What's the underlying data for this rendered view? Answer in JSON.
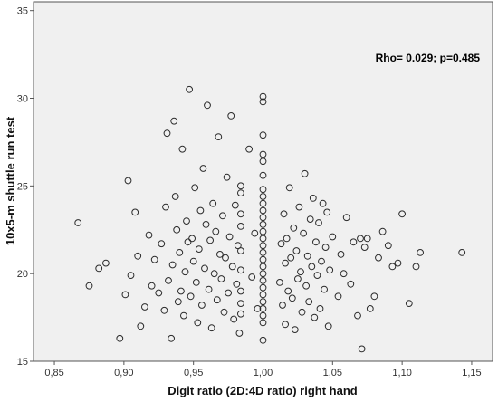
{
  "chart_data": {
    "type": "scatter",
    "title": "",
    "xlabel": "Digit ratio (2D:4D ratio) right hand",
    "ylabel": "10x5-m shuttle run test",
    "annotation": "Rho= 0.029; p=0.485",
    "xlim": [
      0.835,
      1.165
    ],
    "ylim": [
      15,
      35.5
    ],
    "x_ticks": [
      0.85,
      0.9,
      0.95,
      1.0,
      1.05,
      1.1,
      1.15
    ],
    "x_tick_labels": [
      "0,85",
      "0,90",
      "0,95",
      "1,00",
      "1,05",
      "1,10",
      "1,15"
    ],
    "y_ticks": [
      15,
      20,
      25,
      30,
      35
    ],
    "y_tick_labels": [
      "15",
      "20",
      "25",
      "30",
      "35"
    ],
    "grid": false,
    "marker": "open-circle",
    "colors": {
      "plot_background": "#f0f0f0",
      "marker_stroke": "#2b2b2b",
      "axis": "#555555"
    },
    "points": [
      {
        "x": 0.867,
        "y": 22.9
      },
      {
        "x": 0.875,
        "y": 19.3
      },
      {
        "x": 0.882,
        "y": 20.3
      },
      {
        "x": 0.887,
        "y": 20.6
      },
      {
        "x": 0.897,
        "y": 16.3
      },
      {
        "x": 0.901,
        "y": 18.8
      },
      {
        "x": 0.903,
        "y": 25.3
      },
      {
        "x": 0.905,
        "y": 19.9
      },
      {
        "x": 0.908,
        "y": 23.5
      },
      {
        "x": 0.91,
        "y": 21.0
      },
      {
        "x": 0.912,
        "y": 17.0
      },
      {
        "x": 0.915,
        "y": 18.1
      },
      {
        "x": 0.918,
        "y": 22.2
      },
      {
        "x": 0.92,
        "y": 19.3
      },
      {
        "x": 0.922,
        "y": 20.8
      },
      {
        "x": 0.925,
        "y": 18.9
      },
      {
        "x": 0.927,
        "y": 21.7
      },
      {
        "x": 0.929,
        "y": 17.9
      },
      {
        "x": 0.93,
        "y": 23.8
      },
      {
        "x": 0.931,
        "y": 28.0
      },
      {
        "x": 0.932,
        "y": 19.6
      },
      {
        "x": 0.934,
        "y": 16.3
      },
      {
        "x": 0.935,
        "y": 20.5
      },
      {
        "x": 0.936,
        "y": 28.7
      },
      {
        "x": 0.937,
        "y": 24.4
      },
      {
        "x": 0.938,
        "y": 22.5
      },
      {
        "x": 0.939,
        "y": 18.4
      },
      {
        "x": 0.94,
        "y": 21.2
      },
      {
        "x": 0.941,
        "y": 19.0
      },
      {
        "x": 0.942,
        "y": 27.1
      },
      {
        "x": 0.943,
        "y": 17.6
      },
      {
        "x": 0.944,
        "y": 20.1
      },
      {
        "x": 0.945,
        "y": 23.0
      },
      {
        "x": 0.946,
        "y": 21.8
      },
      {
        "x": 0.947,
        "y": 30.5
      },
      {
        "x": 0.948,
        "y": 18.7
      },
      {
        "x": 0.949,
        "y": 22.0
      },
      {
        "x": 0.95,
        "y": 20.7
      },
      {
        "x": 0.951,
        "y": 24.9
      },
      {
        "x": 0.952,
        "y": 19.5
      },
      {
        "x": 0.953,
        "y": 17.2
      },
      {
        "x": 0.954,
        "y": 21.4
      },
      {
        "x": 0.955,
        "y": 23.6
      },
      {
        "x": 0.956,
        "y": 18.2
      },
      {
        "x": 0.957,
        "y": 26.0
      },
      {
        "x": 0.958,
        "y": 20.3
      },
      {
        "x": 0.959,
        "y": 22.8
      },
      {
        "x": 0.96,
        "y": 29.6
      },
      {
        "x": 0.961,
        "y": 19.1
      },
      {
        "x": 0.962,
        "y": 21.9
      },
      {
        "x": 0.963,
        "y": 16.9
      },
      {
        "x": 0.964,
        "y": 24.0
      },
      {
        "x": 0.965,
        "y": 20.0
      },
      {
        "x": 0.966,
        "y": 22.4
      },
      {
        "x": 0.967,
        "y": 18.5
      },
      {
        "x": 0.968,
        "y": 27.8
      },
      {
        "x": 0.969,
        "y": 21.1
      },
      {
        "x": 0.97,
        "y": 19.7
      },
      {
        "x": 0.971,
        "y": 23.3
      },
      {
        "x": 0.972,
        "y": 17.8
      },
      {
        "x": 0.973,
        "y": 20.9
      },
      {
        "x": 0.974,
        "y": 25.5
      },
      {
        "x": 0.975,
        "y": 18.9
      },
      {
        "x": 0.976,
        "y": 22.1
      },
      {
        "x": 0.977,
        "y": 29.0
      },
      {
        "x": 0.978,
        "y": 20.4
      },
      {
        "x": 0.979,
        "y": 17.4
      },
      {
        "x": 0.98,
        "y": 23.9
      },
      {
        "x": 0.981,
        "y": 19.4
      },
      {
        "x": 0.982,
        "y": 21.6
      },
      {
        "x": 0.983,
        "y": 16.6
      },
      {
        "x": 0.984,
        "y": 24.6
      },
      {
        "x": 0.984,
        "y": 20.2
      },
      {
        "x": 0.984,
        "y": 22.7
      },
      {
        "x": 0.984,
        "y": 18.3
      },
      {
        "x": 0.984,
        "y": 25.0
      },
      {
        "x": 0.984,
        "y": 21.3
      },
      {
        "x": 0.984,
        "y": 19.0
      },
      {
        "x": 0.984,
        "y": 23.4
      },
      {
        "x": 0.984,
        "y": 17.7
      },
      {
        "x": 0.99,
        "y": 27.1
      },
      {
        "x": 0.992,
        "y": 19.8
      },
      {
        "x": 0.994,
        "y": 22.3
      },
      {
        "x": 0.996,
        "y": 18.0
      },
      {
        "x": 1.0,
        "y": 17.2
      },
      {
        "x": 1.0,
        "y": 17.6
      },
      {
        "x": 1.0,
        "y": 18.0
      },
      {
        "x": 1.0,
        "y": 18.4
      },
      {
        "x": 1.0,
        "y": 18.8
      },
      {
        "x": 1.0,
        "y": 19.2
      },
      {
        "x": 1.0,
        "y": 19.6
      },
      {
        "x": 1.0,
        "y": 20.0
      },
      {
        "x": 1.0,
        "y": 20.4
      },
      {
        "x": 1.0,
        "y": 20.8
      },
      {
        "x": 1.0,
        "y": 21.2
      },
      {
        "x": 1.0,
        "y": 21.6
      },
      {
        "x": 1.0,
        "y": 22.0
      },
      {
        "x": 1.0,
        "y": 22.4
      },
      {
        "x": 1.0,
        "y": 22.8
      },
      {
        "x": 1.0,
        "y": 23.2
      },
      {
        "x": 1.0,
        "y": 23.6
      },
      {
        "x": 1.0,
        "y": 24.0
      },
      {
        "x": 1.0,
        "y": 24.4
      },
      {
        "x": 1.0,
        "y": 24.8
      },
      {
        "x": 1.0,
        "y": 25.6
      },
      {
        "x": 1.0,
        "y": 26.4
      },
      {
        "x": 1.0,
        "y": 26.8
      },
      {
        "x": 1.0,
        "y": 27.9
      },
      {
        "x": 1.0,
        "y": 29.8
      },
      {
        "x": 1.0,
        "y": 30.1
      },
      {
        "x": 1.0,
        "y": 16.2
      },
      {
        "x": 1.012,
        "y": 19.5
      },
      {
        "x": 1.013,
        "y": 21.7
      },
      {
        "x": 1.014,
        "y": 18.2
      },
      {
        "x": 1.015,
        "y": 23.4
      },
      {
        "x": 1.016,
        "y": 20.6
      },
      {
        "x": 1.016,
        "y": 17.1
      },
      {
        "x": 1.017,
        "y": 22.0
      },
      {
        "x": 1.018,
        "y": 19.0
      },
      {
        "x": 1.019,
        "y": 24.9
      },
      {
        "x": 1.02,
        "y": 20.9
      },
      {
        "x": 1.021,
        "y": 18.6
      },
      {
        "x": 1.022,
        "y": 22.6
      },
      {
        "x": 1.023,
        "y": 16.8
      },
      {
        "x": 1.024,
        "y": 21.3
      },
      {
        "x": 1.025,
        "y": 19.7
      },
      {
        "x": 1.026,
        "y": 23.8
      },
      {
        "x": 1.027,
        "y": 20.1
      },
      {
        "x": 1.028,
        "y": 17.8
      },
      {
        "x": 1.029,
        "y": 22.3
      },
      {
        "x": 1.03,
        "y": 25.7
      },
      {
        "x": 1.031,
        "y": 19.3
      },
      {
        "x": 1.032,
        "y": 21.0
      },
      {
        "x": 1.033,
        "y": 18.4
      },
      {
        "x": 1.034,
        "y": 23.1
      },
      {
        "x": 1.035,
        "y": 20.4
      },
      {
        "x": 1.036,
        "y": 24.3
      },
      {
        "x": 1.037,
        "y": 17.5
      },
      {
        "x": 1.038,
        "y": 21.8
      },
      {
        "x": 1.039,
        "y": 19.9
      },
      {
        "x": 1.04,
        "y": 22.9
      },
      {
        "x": 1.041,
        "y": 18.0
      },
      {
        "x": 1.042,
        "y": 20.7
      },
      {
        "x": 1.043,
        "y": 24.0
      },
      {
        "x": 1.044,
        "y": 19.1
      },
      {
        "x": 1.045,
        "y": 21.5
      },
      {
        "x": 1.046,
        "y": 23.5
      },
      {
        "x": 1.047,
        "y": 17.0
      },
      {
        "x": 1.048,
        "y": 20.2
      },
      {
        "x": 1.05,
        "y": 22.1
      },
      {
        "x": 1.054,
        "y": 18.7
      },
      {
        "x": 1.056,
        "y": 21.1
      },
      {
        "x": 1.058,
        "y": 20.0
      },
      {
        "x": 1.06,
        "y": 23.2
      },
      {
        "x": 1.063,
        "y": 19.4
      },
      {
        "x": 1.065,
        "y": 21.8
      },
      {
        "x": 1.068,
        "y": 17.6
      },
      {
        "x": 1.07,
        "y": 22.0
      },
      {
        "x": 1.071,
        "y": 15.7
      },
      {
        "x": 1.073,
        "y": 21.5
      },
      {
        "x": 1.075,
        "y": 22.0
      },
      {
        "x": 1.077,
        "y": 18.0
      },
      {
        "x": 1.08,
        "y": 18.7
      },
      {
        "x": 1.083,
        "y": 20.9
      },
      {
        "x": 1.086,
        "y": 22.4
      },
      {
        "x": 1.09,
        "y": 21.6
      },
      {
        "x": 1.093,
        "y": 20.4
      },
      {
        "x": 1.097,
        "y": 20.6
      },
      {
        "x": 1.1,
        "y": 23.4
      },
      {
        "x": 1.105,
        "y": 18.3
      },
      {
        "x": 1.11,
        "y": 20.4
      },
      {
        "x": 1.113,
        "y": 21.2
      },
      {
        "x": 1.143,
        "y": 21.2
      }
    ]
  }
}
